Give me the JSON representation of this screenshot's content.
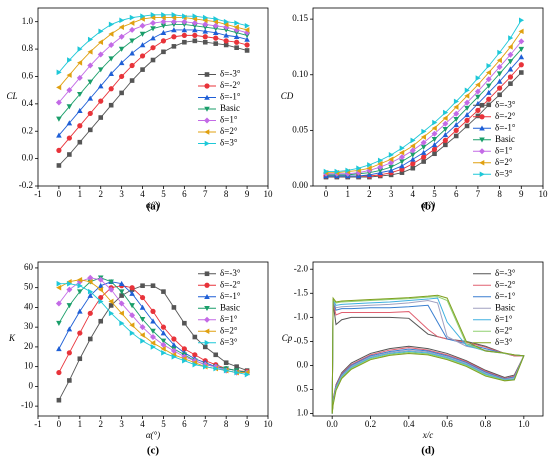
{
  "chart_data": [
    {
      "type": "line",
      "title": "(a)",
      "x_label": "α(°)",
      "y_label": "CL",
      "legend": "right",
      "x": [
        0,
        0.5,
        1,
        1.5,
        2,
        2.5,
        3,
        3.5,
        4,
        4.5,
        5,
        5.5,
        6,
        6.5,
        7,
        7.5,
        8,
        8.5,
        9
      ],
      "xlim": [
        -1,
        10
      ],
      "xticks": [
        -1,
        0,
        1,
        2,
        3,
        4,
        5,
        6,
        7,
        8,
        9,
        10
      ],
      "ylim": [
        -0.2,
        1.1
      ],
      "yticks": [
        -0.2,
        {
          "value": 0,
          "label": "0.0"
        },
        0.2,
        0.4,
        0.6,
        0.8,
        {
          "value": 1,
          "label": "1.0"
        }
      ],
      "series": [
        {
          "name": "δ=-3°",
          "color": "#555555",
          "marker": "square",
          "values": [
            -0.05,
            0.03,
            0.12,
            0.21,
            0.3,
            0.39,
            0.48,
            0.57,
            0.65,
            0.72,
            0.78,
            0.82,
            0.85,
            0.86,
            0.85,
            0.84,
            0.83,
            0.81,
            0.79
          ]
        },
        {
          "name": "δ=-2°",
          "color": "#e8333a",
          "marker": "circle",
          "values": [
            0.06,
            0.15,
            0.24,
            0.33,
            0.42,
            0.51,
            0.6,
            0.68,
            0.75,
            0.81,
            0.86,
            0.89,
            0.9,
            0.9,
            0.89,
            0.88,
            0.86,
            0.85,
            0.83
          ]
        },
        {
          "name": "δ=-1°",
          "color": "#1f5fd6",
          "marker": "tri-up",
          "values": [
            0.17,
            0.26,
            0.35,
            0.44,
            0.53,
            0.62,
            0.7,
            0.77,
            0.83,
            0.88,
            0.92,
            0.94,
            0.94,
            0.94,
            0.93,
            0.92,
            0.9,
            0.89,
            0.87
          ]
        },
        {
          "name": "Basic",
          "color": "#1a9e6a",
          "marker": "tri-down",
          "values": [
            0.29,
            0.38,
            0.47,
            0.56,
            0.65,
            0.73,
            0.8,
            0.86,
            0.91,
            0.95,
            0.97,
            0.98,
            0.98,
            0.97,
            0.96,
            0.95,
            0.94,
            0.92,
            0.9
          ]
        },
        {
          "name": "δ=1°",
          "color": "#c36ae6",
          "marker": "diamond",
          "values": [
            0.41,
            0.5,
            0.59,
            0.68,
            0.76,
            0.83,
            0.89,
            0.94,
            0.97,
            0.99,
            1.0,
            1.0,
            1.0,
            0.99,
            0.98,
            0.97,
            0.96,
            0.94,
            0.92
          ]
        },
        {
          "name": "δ=2°",
          "color": "#e0a010",
          "marker": "tri-left",
          "values": [
            0.52,
            0.61,
            0.7,
            0.78,
            0.85,
            0.91,
            0.96,
            0.99,
            1.02,
            1.03,
            1.03,
            1.03,
            1.03,
            1.02,
            1.01,
            1.0,
            0.98,
            0.96,
            0.94
          ]
        },
        {
          "name": "δ=3°",
          "color": "#1ec8d8",
          "marker": "tri-right",
          "values": [
            0.63,
            0.72,
            0.8,
            0.87,
            0.93,
            0.98,
            1.01,
            1.03,
            1.04,
            1.05,
            1.05,
            1.05,
            1.04,
            1.04,
            1.03,
            1.02,
            1.0,
            0.99,
            0.97
          ]
        }
      ]
    },
    {
      "type": "line",
      "title": "(b)",
      "x_label": "α(°)",
      "y_label": "CD",
      "legend": "lower right",
      "x": [
        0,
        0.5,
        1,
        1.5,
        2,
        2.5,
        3,
        3.5,
        4,
        4.5,
        5,
        5.5,
        6,
        6.5,
        7,
        7.5,
        8,
        8.5,
        9
      ],
      "xlim": [
        -0.6,
        10
      ],
      "xticks": [
        0,
        1,
        2,
        3,
        4,
        5,
        6,
        7,
        8,
        9,
        10
      ],
      "ylim": [
        0,
        0.16
      ],
      "yticks": [
        {
          "value": 0,
          "label": "0.00"
        },
        0.05,
        {
          "value": 0.1,
          "label": "0.10"
        },
        0.15
      ],
      "series": [
        {
          "name": "δ=-3°",
          "color": "#555555",
          "marker": "square",
          "values": [
            0.008,
            0.008,
            0.008,
            0.008,
            0.008,
            0.009,
            0.01,
            0.012,
            0.016,
            0.022,
            0.029,
            0.037,
            0.045,
            0.054,
            0.063,
            0.073,
            0.082,
            0.092,
            0.102
          ]
        },
        {
          "name": "δ=-2°",
          "color": "#e8333a",
          "marker": "circle",
          "values": [
            0.009,
            0.009,
            0.009,
            0.009,
            0.009,
            0.01,
            0.012,
            0.015,
            0.02,
            0.026,
            0.033,
            0.041,
            0.05,
            0.059,
            0.068,
            0.078,
            0.088,
            0.098,
            0.109
          ]
        },
        {
          "name": "δ=-1°",
          "color": "#1f5fd6",
          "marker": "tri-up",
          "values": [
            0.009,
            0.009,
            0.009,
            0.009,
            0.01,
            0.012,
            0.014,
            0.018,
            0.024,
            0.03,
            0.037,
            0.046,
            0.055,
            0.064,
            0.074,
            0.084,
            0.094,
            0.105,
            0.116
          ]
        },
        {
          "name": "Basic",
          "color": "#1a9e6a",
          "marker": "tri-down",
          "values": [
            0.01,
            0.01,
            0.01,
            0.011,
            0.012,
            0.014,
            0.017,
            0.022,
            0.028,
            0.035,
            0.042,
            0.051,
            0.06,
            0.07,
            0.08,
            0.09,
            0.101,
            0.112,
            0.123
          ]
        },
        {
          "name": "δ=1°",
          "color": "#c36ae6",
          "marker": "diamond",
          "values": [
            0.011,
            0.011,
            0.011,
            0.012,
            0.014,
            0.017,
            0.021,
            0.026,
            0.032,
            0.039,
            0.047,
            0.056,
            0.065,
            0.075,
            0.085,
            0.096,
            0.107,
            0.118,
            0.13
          ]
        },
        {
          "name": "δ=2°",
          "color": "#e0a010",
          "marker": "tri-left",
          "values": [
            0.012,
            0.012,
            0.013,
            0.014,
            0.016,
            0.02,
            0.024,
            0.03,
            0.036,
            0.044,
            0.052,
            0.061,
            0.071,
            0.081,
            0.091,
            0.102,
            0.113,
            0.125,
            0.139
          ]
        },
        {
          "name": "δ=3°",
          "color": "#1ec8d8",
          "marker": "tri-right",
          "values": [
            0.013,
            0.013,
            0.014,
            0.016,
            0.019,
            0.023,
            0.028,
            0.034,
            0.041,
            0.049,
            0.057,
            0.066,
            0.076,
            0.086,
            0.097,
            0.108,
            0.12,
            0.133,
            0.149
          ]
        }
      ]
    },
    {
      "type": "line",
      "title": "(c)",
      "x_label": "α(°)",
      "y_label": "K",
      "legend": "upper right",
      "x": [
        0,
        0.5,
        1,
        1.5,
        2,
        2.5,
        3,
        3.5,
        4,
        4.5,
        5,
        5.5,
        6,
        6.5,
        7,
        7.5,
        8,
        8.5,
        9
      ],
      "xlim": [
        -1,
        10
      ],
      "xticks": [
        -1,
        0,
        1,
        2,
        3,
        4,
        5,
        6,
        7,
        8,
        9,
        10
      ],
      "ylim": [
        -15,
        63
      ],
      "yticks": [
        -10,
        0,
        10,
        20,
        30,
        40,
        50,
        60
      ],
      "series": [
        {
          "name": "δ=-3°",
          "color": "#555555",
          "marker": "square",
          "values": [
            -7,
            3,
            14,
            24,
            33,
            41,
            46,
            49,
            51,
            51,
            48,
            40,
            32,
            25,
            20,
            16,
            12,
            10,
            8
          ]
        },
        {
          "name": "δ=-2°",
          "color": "#e8333a",
          "marker": "circle",
          "values": [
            7,
            17,
            27,
            37,
            45,
            50,
            51,
            50,
            45,
            38,
            30,
            24,
            19,
            16,
            13,
            11,
            9,
            8,
            7.5
          ]
        },
        {
          "name": "δ=-1°",
          "color": "#1f5fd6",
          "marker": "tri-up",
          "values": [
            19,
            29,
            38,
            46,
            51,
            53,
            52,
            47,
            40,
            33,
            27,
            21,
            17,
            14,
            12,
            10,
            9,
            8,
            7
          ]
        },
        {
          "name": "Basic",
          "color": "#1a9e6a",
          "marker": "tri-down",
          "values": [
            32,
            41,
            48,
            53,
            55,
            53,
            48,
            41,
            34,
            28,
            23,
            19,
            16,
            13,
            11,
            10,
            9,
            8,
            7
          ]
        },
        {
          "name": "δ=1°",
          "color": "#c36ae6",
          "marker": "diamond",
          "values": [
            42,
            49,
            53,
            55,
            54,
            49,
            42,
            36,
            30,
            25,
            21,
            18,
            15,
            13,
            11,
            10,
            8,
            7,
            7
          ]
        },
        {
          "name": "δ=2°",
          "color": "#e0a010",
          "marker": "tri-left",
          "values": [
            50,
            53,
            54,
            53,
            49,
            43,
            37,
            31,
            26,
            22,
            19,
            16,
            14,
            12,
            10,
            9,
            8,
            7,
            7
          ]
        },
        {
          "name": "δ=3°",
          "color": "#1ec8d8",
          "marker": "tri-right",
          "values": [
            52,
            52,
            51,
            48,
            43,
            37,
            32,
            27,
            23,
            20,
            17,
            15,
            13,
            11,
            10,
            9,
            8,
            7,
            6
          ]
        }
      ]
    },
    {
      "type": "line",
      "title": "(d)",
      "x_label": "x/c",
      "y_label": "Cp",
      "legend": "upper right",
      "x": [
        0,
        0.005,
        0.02,
        0.05,
        0.1,
        0.2,
        0.3,
        0.4,
        0.5,
        0.55,
        0.6,
        0.7,
        0.8,
        0.9,
        0.95,
        1,
        0.95,
        0.9,
        0.8,
        0.7,
        0.6,
        0.5,
        0.4,
        0.3,
        0.2,
        0.1,
        0.05,
        0.02,
        0.005,
        0
      ],
      "xlim": [
        -0.1,
        1.1
      ],
      "xticks": [
        {
          "value": 0,
          "label": "0.0"
        },
        0.2,
        0.4,
        0.6,
        0.8,
        {
          "value": 1,
          "label": "1.0"
        }
      ],
      "ylim": [
        1.05,
        -2.15
      ],
      "yticks": [
        {
          "value": -2,
          "label": "-2.0"
        },
        -1.5,
        {
          "value": -1,
          "label": "-1.0"
        },
        -0.5,
        {
          "value": 0,
          "label": "0.0"
        },
        0.5,
        {
          "value": 1,
          "label": "1.0"
        }
      ],
      "series": [
        {
          "name": "δ=-3°",
          "color": "#555555",
          "values": [
            1.0,
            -1.3,
            -0.85,
            -0.95,
            -1.0,
            -1.0,
            -1.0,
            -0.98,
            -0.65,
            -0.6,
            -0.55,
            -0.5,
            -0.4,
            -0.25,
            -0.2,
            -0.2,
            0.2,
            0.25,
            0.1,
            -0.1,
            -0.25,
            -0.35,
            -0.4,
            -0.35,
            -0.25,
            -0.05,
            0.15,
            0.4,
            0.7,
            1.0
          ]
        },
        {
          "name": "δ=-2°",
          "color": "#e06070",
          "values": [
            1.0,
            -1.3,
            -1.05,
            -1.1,
            -1.1,
            -1.1,
            -1.1,
            -1.12,
            -0.75,
            -0.6,
            -0.55,
            -0.48,
            -0.38,
            -0.25,
            -0.2,
            -0.2,
            0.22,
            0.27,
            0.12,
            -0.08,
            -0.22,
            -0.32,
            -0.37,
            -0.32,
            -0.22,
            -0.02,
            0.17,
            0.42,
            0.72,
            1.0
          ]
        },
        {
          "name": "δ=-1°",
          "color": "#3a7fd0",
          "values": [
            1.0,
            -1.32,
            -1.15,
            -1.18,
            -1.18,
            -1.2,
            -1.2,
            -1.22,
            -1.25,
            -0.9,
            -0.55,
            -0.45,
            -0.35,
            -0.25,
            -0.22,
            -0.2,
            0.24,
            0.28,
            0.14,
            -0.06,
            -0.2,
            -0.3,
            -0.34,
            -0.29,
            -0.2,
            0.0,
            0.19,
            0.44,
            0.74,
            1.0
          ]
        },
        {
          "name": "Basic",
          "color": "#a0a0c0",
          "values": [
            1.0,
            -1.33,
            -1.2,
            -1.22,
            -1.23,
            -1.25,
            -1.27,
            -1.3,
            -1.35,
            -1.3,
            -0.6,
            -0.4,
            -0.32,
            -0.25,
            -0.22,
            -0.2,
            0.26,
            0.29,
            0.16,
            -0.04,
            -0.18,
            -0.28,
            -0.31,
            -0.27,
            -0.18,
            0.02,
            0.21,
            0.46,
            0.76,
            1.0
          ]
        },
        {
          "name": "δ=1°",
          "color": "#40b0e0",
          "values": [
            1.0,
            -1.35,
            -1.25,
            -1.27,
            -1.28,
            -1.3,
            -1.32,
            -1.35,
            -1.38,
            -1.4,
            -0.9,
            -0.42,
            -0.3,
            -0.25,
            -0.22,
            -0.2,
            0.28,
            0.3,
            0.18,
            -0.02,
            -0.16,
            -0.26,
            -0.29,
            -0.25,
            -0.16,
            0.04,
            0.23,
            0.48,
            0.78,
            1.0
          ]
        },
        {
          "name": "δ=2°",
          "color": "#90d070",
          "values": [
            1.0,
            -1.37,
            -1.3,
            -1.32,
            -1.33,
            -1.35,
            -1.37,
            -1.39,
            -1.42,
            -1.43,
            -1.35,
            -0.45,
            -0.3,
            -0.25,
            -0.22,
            -0.2,
            0.3,
            0.31,
            0.2,
            0.0,
            -0.14,
            -0.24,
            -0.27,
            -0.23,
            -0.14,
            0.06,
            0.25,
            0.5,
            0.8,
            1.0
          ]
        },
        {
          "name": "δ=3°",
          "color": "#80a020",
          "values": [
            1.0,
            -1.4,
            -1.32,
            -1.34,
            -1.35,
            -1.37,
            -1.39,
            -1.41,
            -1.44,
            -1.46,
            -1.4,
            -0.5,
            -0.3,
            -0.26,
            -0.22,
            -0.2,
            0.3,
            0.32,
            0.22,
            0.02,
            -0.12,
            -0.22,
            -0.25,
            -0.21,
            -0.12,
            0.08,
            0.27,
            0.52,
            0.82,
            1.0
          ]
        }
      ]
    }
  ]
}
